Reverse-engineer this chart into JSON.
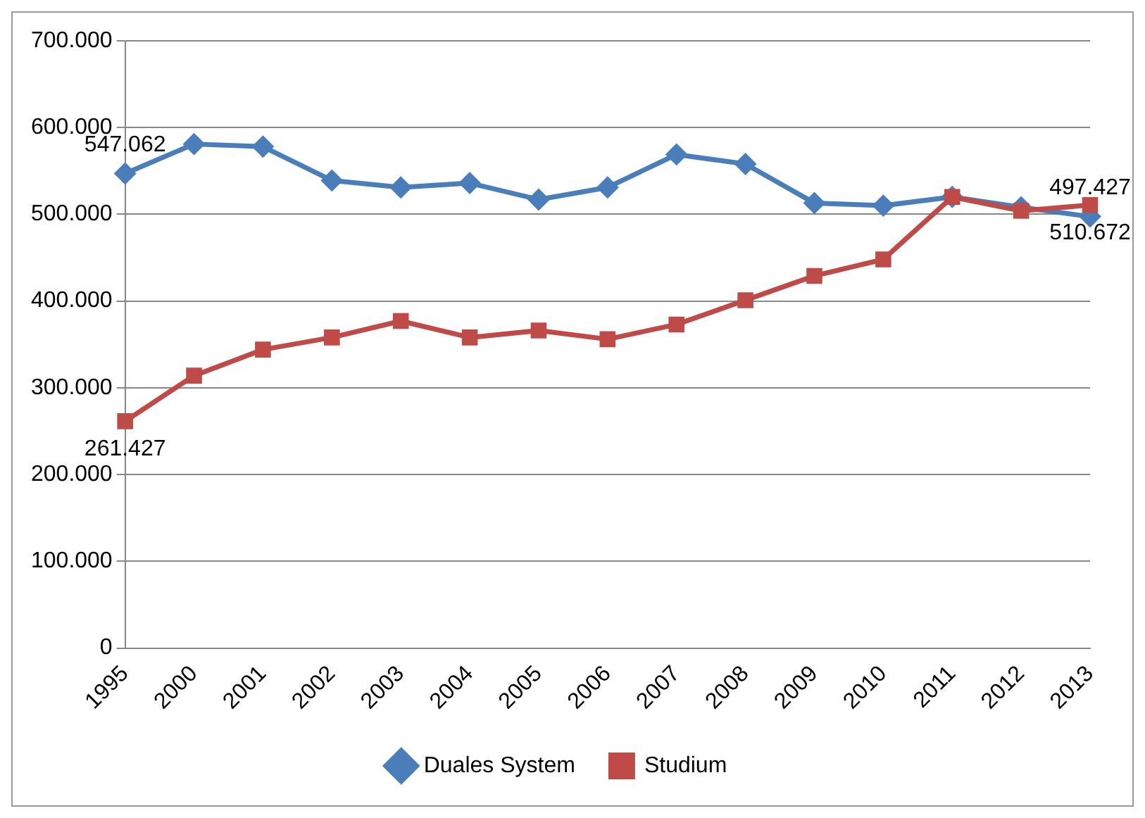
{
  "chart_data": {
    "type": "line",
    "categories": [
      "1995",
      "2000",
      "2001",
      "2002",
      "2003",
      "2004",
      "2005",
      "2006",
      "2007",
      "2008",
      "2009",
      "2010",
      "2011",
      "2012",
      "2013"
    ],
    "series": [
      {
        "name": "Duales System",
        "color": "#4a7ebb",
        "marker": "diamond",
        "values": [
          547062,
          581000,
          578000,
          539000,
          531000,
          536000,
          517000,
          531000,
          569000,
          558000,
          513000,
          510000,
          520000,
          508000,
          497427
        ],
        "value_labels": [
          "547.062",
          null,
          null,
          null,
          null,
          null,
          null,
          null,
          null,
          null,
          null,
          null,
          null,
          null,
          "497.427"
        ]
      },
      {
        "name": "Studium",
        "color": "#be4b48",
        "marker": "square",
        "values": [
          261427,
          314000,
          344000,
          358000,
          377000,
          358000,
          366000,
          356000,
          373000,
          401000,
          429000,
          448000,
          520000,
          504000,
          510672
        ],
        "value_labels": [
          "261.427",
          null,
          null,
          null,
          null,
          null,
          null,
          null,
          null,
          null,
          null,
          null,
          null,
          null,
          "510.672"
        ]
      }
    ],
    "ylim": [
      0,
      700000
    ],
    "yticks": [
      {
        "value": 0,
        "label": "0"
      },
      {
        "value": 100000,
        "label": "100.000"
      },
      {
        "value": 200000,
        "label": "200.000"
      },
      {
        "value": 300000,
        "label": "300.000"
      },
      {
        "value": 400000,
        "label": "400.000"
      },
      {
        "value": 500000,
        "label": "500.000"
      },
      {
        "value": 600000,
        "label": "600.000"
      },
      {
        "value": 700000,
        "label": "700.000"
      }
    ],
    "grid": "y",
    "legend": "bottom",
    "line_style": "solid"
  }
}
